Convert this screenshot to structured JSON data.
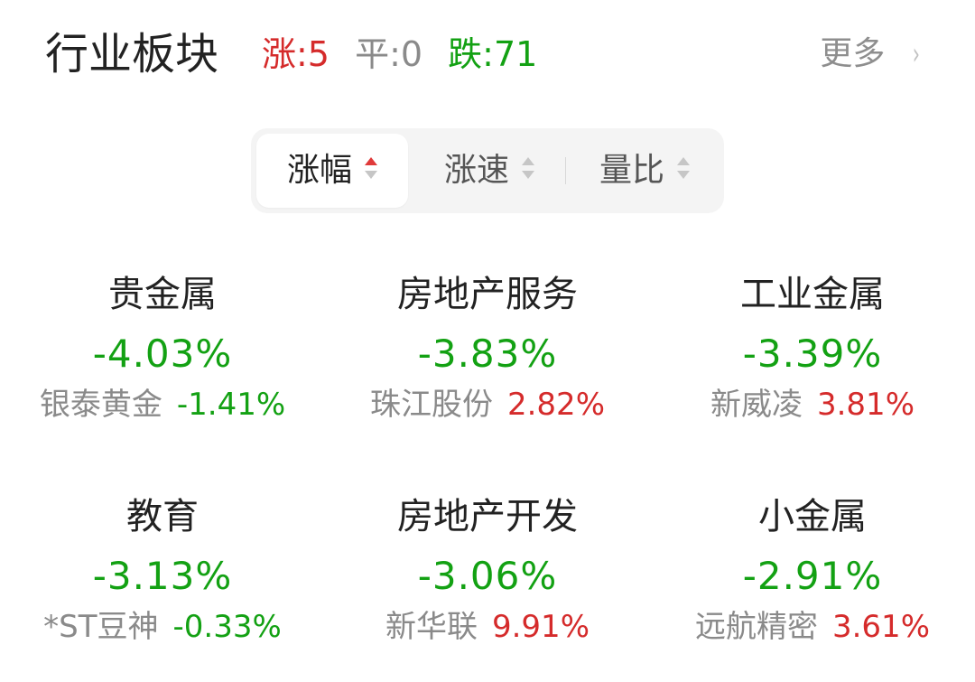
{
  "header": {
    "title": "行业板块",
    "stats": [
      {
        "label": "涨:5",
        "color": "#d52b2b"
      },
      {
        "label": "平:0",
        "color": "#8a8a8a"
      },
      {
        "label": "跌:71",
        "color": "#13a113"
      }
    ],
    "more_label": "更多",
    "more_chevron": "›"
  },
  "sort_tabs": [
    {
      "label": "涨幅",
      "active": true,
      "icon": "sort-arrows-icon"
    },
    {
      "label": "涨速",
      "active": false,
      "icon": "sort-arrows-icon"
    },
    {
      "label": "量比",
      "active": false,
      "icon": "sort-arrows-icon"
    }
  ],
  "sectors": [
    {
      "name": "贵金属",
      "change": "-4.03%",
      "lead_stock": "银泰黄金",
      "lead_change": "-1.41%",
      "lead_direction": "down"
    },
    {
      "name": "房地产服务",
      "change": "-3.83%",
      "lead_stock": "珠江股份",
      "lead_change": "2.82%",
      "lead_direction": "up"
    },
    {
      "name": "工业金属",
      "change": "-3.39%",
      "lead_stock": "新威凌",
      "lead_change": "3.81%",
      "lead_direction": "up"
    },
    {
      "name": "教育",
      "change": "-3.13%",
      "lead_stock": "*ST豆神",
      "lead_change": "-0.33%",
      "lead_direction": "down"
    },
    {
      "name": "房地产开发",
      "change": "-3.06%",
      "lead_stock": "新华联",
      "lead_change": "9.91%",
      "lead_direction": "up"
    },
    {
      "name": "小金属",
      "change": "-2.91%",
      "lead_stock": "远航精密",
      "lead_change": "3.61%",
      "lead_direction": "up"
    }
  ],
  "colors": {
    "up": "#d52b2b",
    "down": "#13a113",
    "flat": "#8a8a8a",
    "active_sort_arrow": "#e03a3a"
  }
}
